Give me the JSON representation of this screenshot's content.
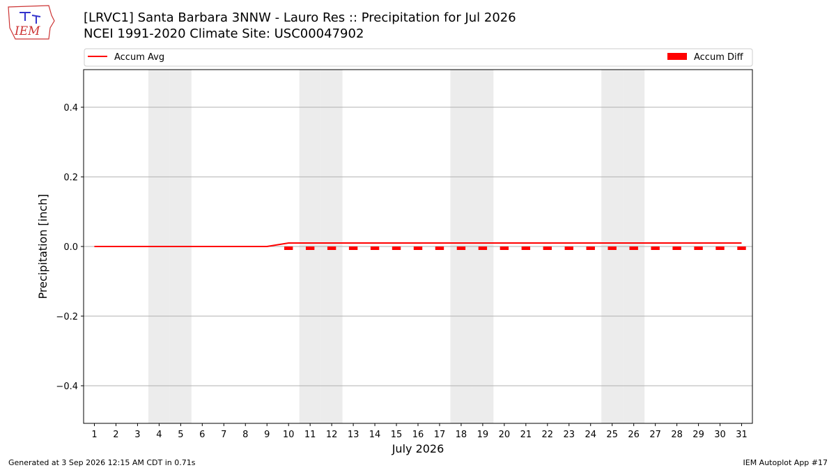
{
  "chart_data": {
    "type": "line",
    "logo_text": "IEM",
    "title": "[LRVC1] Santa Barbara 3NNW - Lauro Res :: Precipitation for Jul 2026",
    "subtitle": "NCEI 1991-2020 Climate Site: USC00047902",
    "x_label": "July 2026",
    "y_label": "Precipitation [inch]",
    "x": [
      1,
      2,
      3,
      4,
      5,
      6,
      7,
      8,
      9,
      10,
      11,
      12,
      13,
      14,
      15,
      16,
      17,
      18,
      19,
      20,
      21,
      22,
      23,
      24,
      25,
      26,
      27,
      28,
      29,
      30,
      31
    ],
    "xlim": [
      0.5,
      31.5
    ],
    "xticks": [
      1,
      2,
      3,
      4,
      5,
      6,
      7,
      8,
      9,
      10,
      11,
      12,
      13,
      14,
      15,
      16,
      17,
      18,
      19,
      20,
      21,
      22,
      23,
      24,
      25,
      26,
      27,
      28,
      29,
      30,
      31
    ],
    "ylim": [
      -0.508,
      0.508
    ],
    "yticks": [
      {
        "value": -0.4,
        "label": "−0.4"
      },
      {
        "value": -0.2,
        "label": "−0.2"
      },
      {
        "value": 0,
        "label": "0.0"
      },
      0.2,
      0.4
    ],
    "grid": true,
    "shaded_days": [
      4,
      5,
      11,
      12,
      18,
      19,
      25,
      26
    ],
    "shade_color": "#ececec",
    "series": [
      {
        "name": "Accum Avg",
        "type": "line",
        "color": "#ff0000",
        "values": [
          0,
          0,
          0,
          0,
          0,
          0,
          0,
          0,
          0,
          0.01,
          0.01,
          0.01,
          0.01,
          0.01,
          0.01,
          0.01,
          0.01,
          0.01,
          0.01,
          0.01,
          0.01,
          0.01,
          0.01,
          0.01,
          0.01,
          0.01,
          0.01,
          0.01,
          0.01,
          0.01,
          0.01
        ]
      },
      {
        "name": "Accum Diff",
        "type": "bar",
        "color": "#ff0000",
        "values": [
          0,
          0,
          0,
          0,
          0,
          0,
          0,
          0,
          0,
          -0.01,
          -0.01,
          -0.01,
          -0.01,
          -0.01,
          -0.01,
          -0.01,
          -0.01,
          -0.01,
          -0.01,
          -0.01,
          -0.01,
          -0.01,
          -0.01,
          -0.01,
          -0.01,
          -0.01,
          -0.01,
          -0.01,
          -0.01,
          -0.01,
          -0.01
        ]
      }
    ],
    "footer_left": "Generated at 3 Sep 2026 12:15 AM CDT in 0.71s",
    "footer_right": "IEM Autoplot App #17"
  }
}
